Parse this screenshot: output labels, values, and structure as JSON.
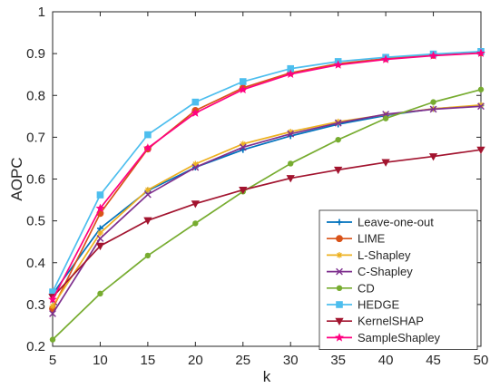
{
  "chart_data": {
    "type": "line",
    "title": "",
    "xlabel": "k",
    "ylabel": "AOPC",
    "xlim": [
      5,
      50
    ],
    "ylim": [
      0.2,
      1
    ],
    "xticks": [
      5,
      10,
      15,
      20,
      25,
      30,
      35,
      40,
      45,
      50
    ],
    "yticks": [
      0.2,
      0.3,
      0.4,
      0.5,
      0.6,
      0.7,
      0.8,
      0.9,
      1
    ],
    "grid": false,
    "legend_position": "bottom-right",
    "x": [
      5,
      10,
      15,
      20,
      25,
      30,
      35,
      40,
      45,
      50
    ],
    "series": [
      {
        "name": "Leave-one-out",
        "color": "#0072BD",
        "marker": "plus",
        "values": [
          0.325,
          0.482,
          0.572,
          0.628,
          0.67,
          0.703,
          0.731,
          0.752,
          0.768,
          0.776
        ]
      },
      {
        "name": "LIME",
        "color": "#D95319",
        "marker": "circle",
        "values": [
          0.29,
          0.518,
          0.672,
          0.764,
          0.818,
          0.854,
          0.876,
          0.888,
          0.896,
          0.902
        ]
      },
      {
        "name": "L-Shapley",
        "color": "#EDB120",
        "marker": "asterisk",
        "values": [
          0.296,
          0.471,
          0.574,
          0.636,
          0.684,
          0.713,
          0.737,
          0.754,
          0.768,
          0.777
        ]
      },
      {
        "name": "C-Shapley",
        "color": "#7E2F8E",
        "marker": "x",
        "values": [
          0.278,
          0.458,
          0.563,
          0.628,
          0.676,
          0.708,
          0.734,
          0.755,
          0.767,
          0.774
        ]
      },
      {
        "name": "CD",
        "color": "#77AC30",
        "marker": "dot",
        "values": [
          0.216,
          0.326,
          0.417,
          0.494,
          0.57,
          0.637,
          0.694,
          0.745,
          0.784,
          0.814
        ]
      },
      {
        "name": "HEDGE",
        "color": "#4DBEEE",
        "marker": "square",
        "values": [
          0.33,
          0.562,
          0.706,
          0.784,
          0.833,
          0.864,
          0.881,
          0.891,
          0.899,
          0.905
        ]
      },
      {
        "name": "KernelSHAP",
        "color": "#A2142F",
        "marker": "triangle-down",
        "values": [
          0.318,
          0.44,
          0.501,
          0.541,
          0.574,
          0.602,
          0.622,
          0.64,
          0.654,
          0.67
        ]
      },
      {
        "name": "SampleShapley",
        "color": "#FF0080",
        "marker": "pentagram",
        "values": [
          0.312,
          0.53,
          0.674,
          0.758,
          0.814,
          0.851,
          0.873,
          0.886,
          0.895,
          0.901
        ]
      }
    ]
  }
}
